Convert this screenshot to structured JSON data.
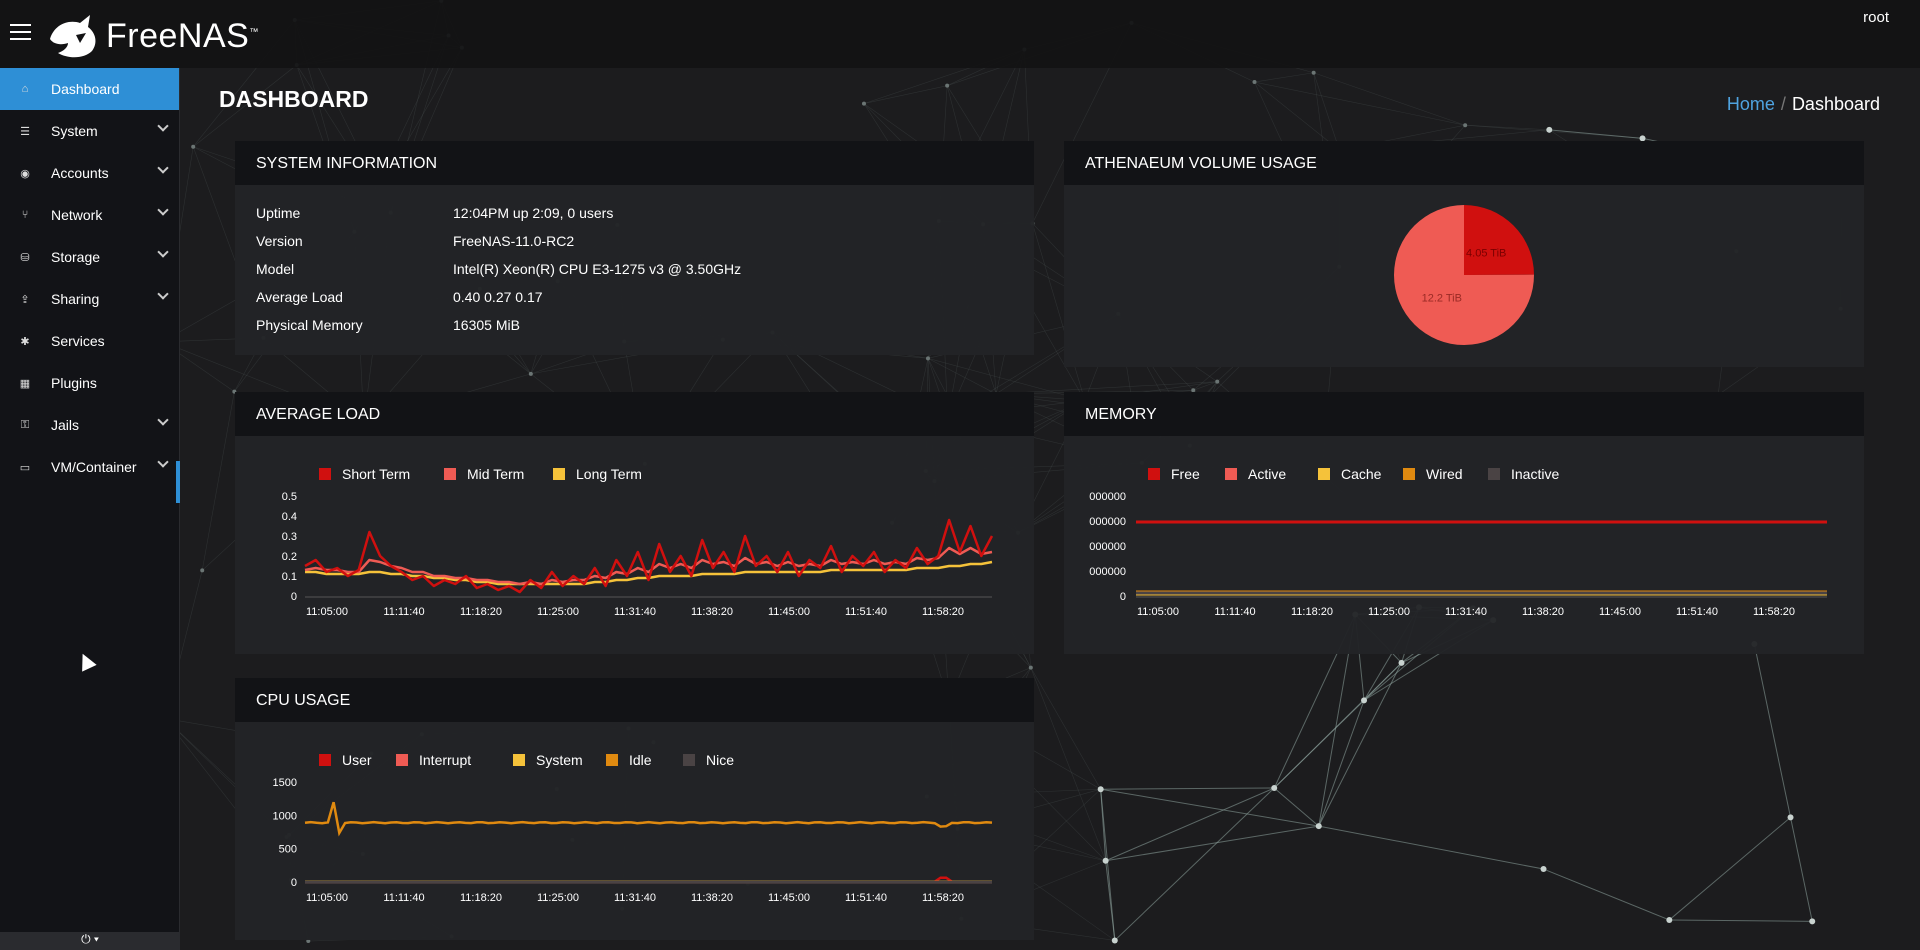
{
  "topbar": {
    "brand": "FreeNAS",
    "user": "root"
  },
  "sidebar": {
    "items": [
      {
        "label": "Dashboard",
        "icon": "home-icon",
        "active": true,
        "expandable": false
      },
      {
        "label": "System",
        "icon": "sliders-icon",
        "expandable": true
      },
      {
        "label": "Accounts",
        "icon": "users-icon",
        "expandable": true
      },
      {
        "label": "Network",
        "icon": "network-icon",
        "expandable": true
      },
      {
        "label": "Storage",
        "icon": "storage-icon",
        "expandable": true
      },
      {
        "label": "Sharing",
        "icon": "share-icon",
        "expandable": true
      },
      {
        "label": "Services",
        "icon": "gear-icon",
        "expandable": false
      },
      {
        "label": "Plugins",
        "icon": "grid-icon",
        "expandable": false
      },
      {
        "label": "Jails",
        "icon": "jail-icon",
        "expandable": true
      },
      {
        "label": "VM/Container",
        "icon": "monitor-icon",
        "expandable": true
      }
    ],
    "power_icon": "power-icon"
  },
  "page": {
    "title": "DASHBOARD"
  },
  "breadcrumb": {
    "home": "Home",
    "current": "Dashboard"
  },
  "system_info": {
    "title": "SYSTEM INFORMATION",
    "rows": [
      {
        "key": "Uptime",
        "value": "12:04PM up 2:09, 0 users"
      },
      {
        "key": "Version",
        "value": "FreeNAS-11.0-RC2"
      },
      {
        "key": "Model",
        "value": "Intel(R) Xeon(R) CPU E3-1275 v3 @ 3.50GHz"
      },
      {
        "key": "Average Load",
        "value": "0.40 0.27 0.17"
      },
      {
        "key": "Physical Memory",
        "value": "16305 MiB"
      }
    ]
  },
  "volume": {
    "title": "ATHENAEUM VOLUME USAGE"
  },
  "load": {
    "title": "AVERAGE LOAD"
  },
  "memory": {
    "title": "MEMORY"
  },
  "cpu": {
    "title": "CPU USAGE"
  },
  "colors": {
    "accent": "#2e8fd6",
    "red": "#d0100f",
    "salmon": "#ef5b54",
    "yellow": "#f5c23a",
    "orange": "#e08a10",
    "gray": "#4a4344"
  },
  "chart_data": [
    {
      "type": "pie",
      "title": "ATHENAEUM VOLUME USAGE",
      "slices": [
        {
          "label": "4.05 TiB",
          "value": 4.05,
          "color": "#d0100f"
        },
        {
          "label": "12.2 TiB",
          "value": 12.2,
          "color": "#ef5b54"
        }
      ]
    },
    {
      "type": "line",
      "title": "AVERAGE LOAD",
      "x_ticks": [
        "11:05:00",
        "11:11:40",
        "11:18:20",
        "11:25:00",
        "11:31:40",
        "11:38:20",
        "11:45:00",
        "11:51:40",
        "11:58:20"
      ],
      "y_ticks": [
        "0.5",
        "0.4",
        "0.3",
        "0.2",
        "0.1",
        "0"
      ],
      "ylim": [
        0,
        0.5
      ],
      "series": [
        {
          "name": "Short Term",
          "color": "#d0100f",
          "values": [
            0.15,
            0.18,
            0.12,
            0.14,
            0.1,
            0.13,
            0.32,
            0.2,
            0.15,
            0.12,
            0.08,
            0.1,
            0.05,
            0.08,
            0.06,
            0.1,
            0.04,
            0.06,
            0.03,
            0.05,
            0.02,
            0.08,
            0.04,
            0.12,
            0.05,
            0.1,
            0.06,
            0.14,
            0.05,
            0.18,
            0.1,
            0.22,
            0.08,
            0.26,
            0.12,
            0.2,
            0.1,
            0.28,
            0.14,
            0.22,
            0.12,
            0.3,
            0.15,
            0.2,
            0.12,
            0.22,
            0.1,
            0.18,
            0.14,
            0.25,
            0.12,
            0.2,
            0.15,
            0.22,
            0.12,
            0.18,
            0.14,
            0.24,
            0.16,
            0.2,
            0.38,
            0.22,
            0.35,
            0.2,
            0.3
          ]
        },
        {
          "name": "Mid Term",
          "color": "#ef5b54",
          "values": [
            0.13,
            0.14,
            0.13,
            0.13,
            0.12,
            0.12,
            0.18,
            0.17,
            0.15,
            0.14,
            0.12,
            0.12,
            0.1,
            0.1,
            0.09,
            0.09,
            0.08,
            0.08,
            0.07,
            0.07,
            0.06,
            0.07,
            0.06,
            0.08,
            0.07,
            0.08,
            0.08,
            0.1,
            0.09,
            0.12,
            0.11,
            0.14,
            0.12,
            0.16,
            0.14,
            0.16,
            0.14,
            0.18,
            0.16,
            0.17,
            0.15,
            0.19,
            0.16,
            0.17,
            0.15,
            0.17,
            0.15,
            0.16,
            0.15,
            0.18,
            0.16,
            0.17,
            0.16,
            0.18,
            0.16,
            0.17,
            0.16,
            0.19,
            0.18,
            0.19,
            0.24,
            0.21,
            0.24,
            0.21,
            0.22
          ]
        },
        {
          "name": "Long Term",
          "color": "#f5c23a",
          "values": [
            0.12,
            0.12,
            0.11,
            0.11,
            0.11,
            0.11,
            0.12,
            0.12,
            0.11,
            0.11,
            0.1,
            0.1,
            0.09,
            0.09,
            0.08,
            0.08,
            0.07,
            0.07,
            0.06,
            0.06,
            0.06,
            0.06,
            0.06,
            0.06,
            0.06,
            0.06,
            0.06,
            0.07,
            0.07,
            0.08,
            0.08,
            0.09,
            0.09,
            0.1,
            0.1,
            0.1,
            0.1,
            0.11,
            0.11,
            0.11,
            0.11,
            0.12,
            0.12,
            0.12,
            0.12,
            0.12,
            0.12,
            0.12,
            0.12,
            0.13,
            0.13,
            0.13,
            0.13,
            0.13,
            0.13,
            0.13,
            0.13,
            0.14,
            0.14,
            0.14,
            0.15,
            0.15,
            0.16,
            0.16,
            0.17
          ]
        }
      ]
    },
    {
      "type": "line",
      "title": "MEMORY",
      "x_ticks": [
        "11:05:00",
        "11:11:40",
        "11:18:20",
        "11:25:00",
        "11:31:40",
        "11:38:20",
        "11:45:00",
        "11:51:40",
        "11:58:20"
      ],
      "y_ticks": [
        "000000",
        "000000",
        "000000",
        "000000",
        "0"
      ],
      "series": [
        {
          "name": "Free",
          "color": "#d0100f",
          "level": 0.72
        },
        {
          "name": "Active",
          "color": "#ef5b54",
          "level": 0.005
        },
        {
          "name": "Cache",
          "color": "#f5c23a",
          "level": 0.0
        },
        {
          "name": "Wired",
          "color": "#e08a10",
          "level": 0.02
        },
        {
          "name": "Inactive",
          "color": "#4a4344",
          "level": 0.01
        }
      ]
    },
    {
      "type": "line",
      "title": "CPU USAGE",
      "x_ticks": [
        "11:05:00",
        "11:11:40",
        "11:18:20",
        "11:25:00",
        "11:31:40",
        "11:38:20",
        "11:45:00",
        "11:51:40",
        "11:58:20"
      ],
      "y_ticks": [
        "1500",
        "1000",
        "500",
        "0"
      ],
      "ylim": [
        0,
        1500
      ],
      "series": [
        {
          "name": "User",
          "color": "#d0100f",
          "level": 5,
          "spike_at": 0.93,
          "spike": 60
        },
        {
          "name": "Interrupt",
          "color": "#ef5b54",
          "level": 2
        },
        {
          "name": "System",
          "color": "#f5c23a",
          "level": 4
        },
        {
          "name": "Idle",
          "color": "#e08a10",
          "level": 890,
          "spike_at": 0.04,
          "spike": 300,
          "dip_at": 0.93
        },
        {
          "name": "Nice",
          "color": "#4a4344",
          "level": 0
        }
      ]
    }
  ]
}
